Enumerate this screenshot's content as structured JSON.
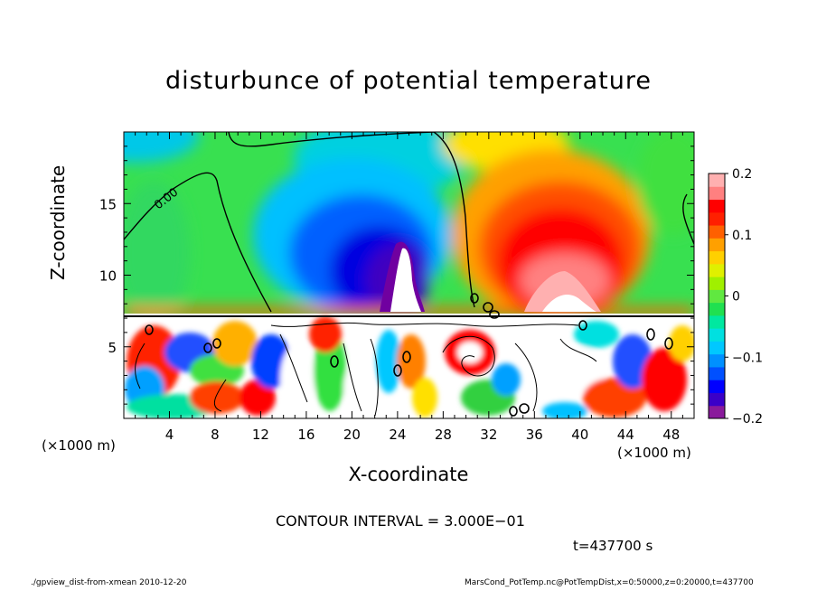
{
  "chart_data": {
    "type": "heatmap",
    "title": "disturbunce of potential temperature",
    "xlabel": "X-coordinate",
    "ylabel": "Z-coordinate",
    "x_unit_left": "(×1000 m)",
    "x_unit_right": "(×1000 m)",
    "xlim": [
      0,
      50
    ],
    "ylim": [
      0,
      20
    ],
    "x_ticks": [
      4,
      8,
      12,
      16,
      20,
      24,
      28,
      32,
      36,
      40,
      44,
      48
    ],
    "y_ticks": [
      5,
      10,
      15
    ],
    "colorbar": {
      "range": [
        -0.2,
        0.2
      ],
      "ticks": [
        "0.2",
        "0.1",
        "0",
        "−0.1",
        "−0.2"
      ],
      "colors": [
        "#8a1a9c",
        "#3a00c8",
        "#0000ff",
        "#0050ff",
        "#0090ff",
        "#00c8ff",
        "#00e0e0",
        "#00e8a0",
        "#20e050",
        "#60e840",
        "#a0f000",
        "#e0f000",
        "#ffd000",
        "#ffa000",
        "#ff6000",
        "#ff2000",
        "#ff0000",
        "#ff8080",
        "#ffb0b0"
      ]
    },
    "contour_label": "0.00",
    "contour_interval": "CONTOUR INTERVAL = 3.000E−01",
    "time": "t=437700 s"
  },
  "footer": {
    "left": "./gpview_dist-from-xmean   2010-12-20",
    "right": "MarsCond_PotTemp.nc@PotTempDist,x=0:50000,z=0:20000,t=437700"
  }
}
